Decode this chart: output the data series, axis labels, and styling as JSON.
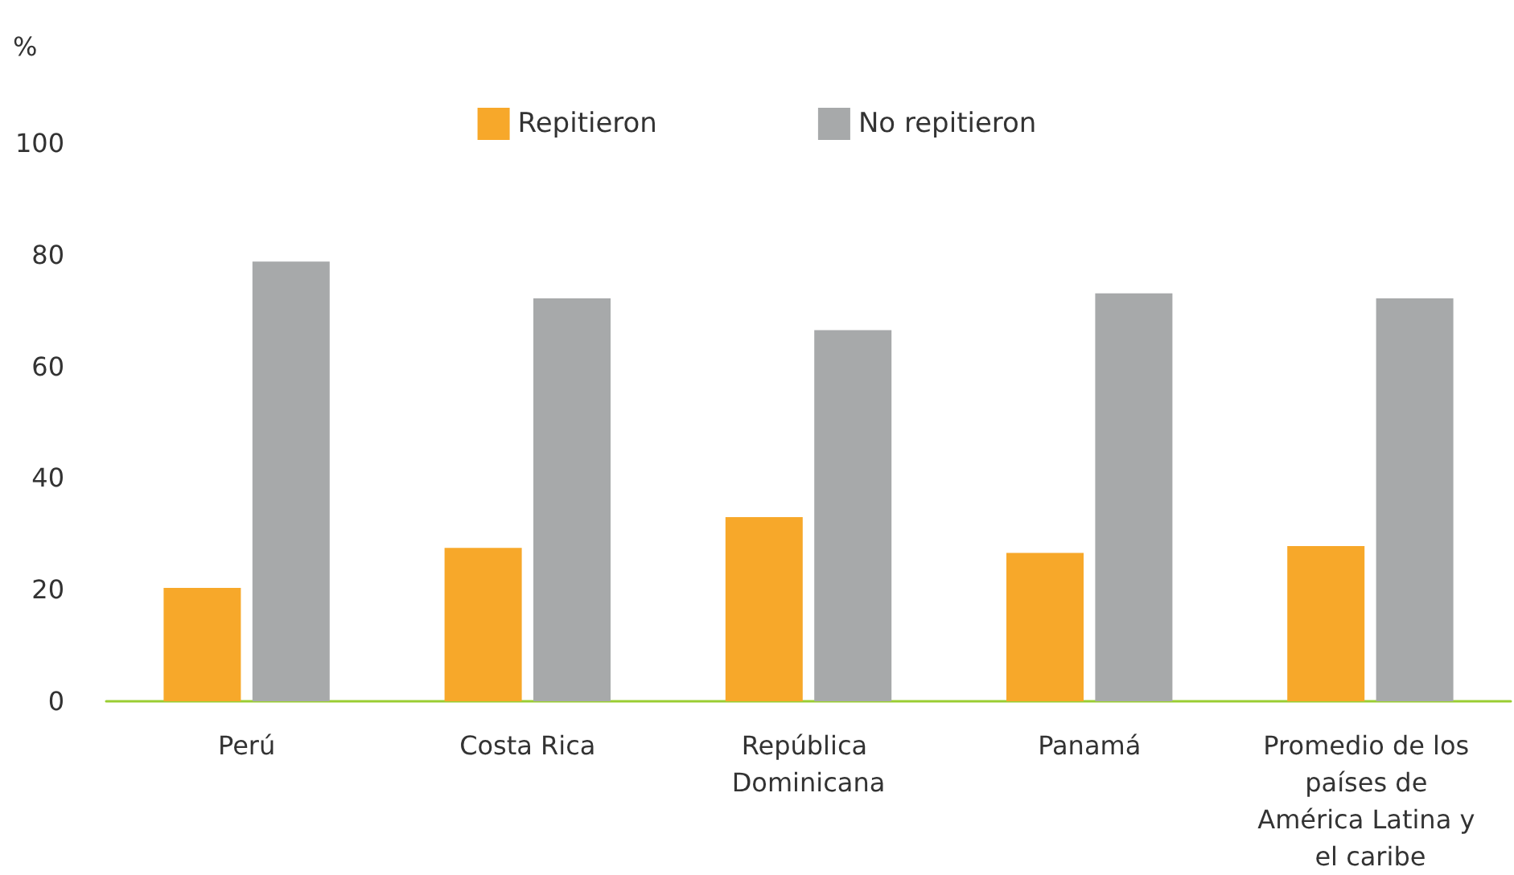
{
  "chart_data": {
    "type": "bar",
    "ylabel": "%",
    "categories": [
      "Perú",
      "Costa Rica",
      "República Dominicana",
      "Panamá",
      "Promedio de los países de América Latina y el caribe"
    ],
    "series": [
      {
        "name": "Repitieron",
        "color": "#f7a82a",
        "values": [
          20.3,
          27.5,
          33.0,
          26.6,
          27.8
        ]
      },
      {
        "name": "No repitieron",
        "color": "#a7a9aa",
        "values": [
          78.8,
          72.2,
          66.5,
          73.1,
          72.2
        ]
      }
    ],
    "ylim": [
      0,
      100
    ],
    "yticks": [
      0,
      20,
      40,
      60,
      80,
      100
    ],
    "grid": false,
    "legend": "top"
  }
}
